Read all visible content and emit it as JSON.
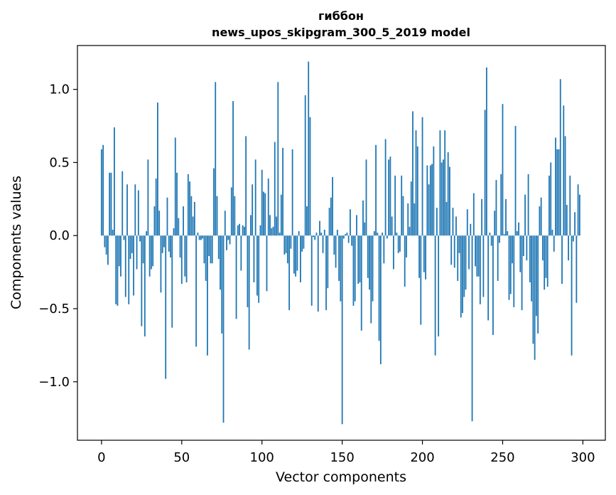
{
  "chart_data": {
    "type": "bar",
    "title_lines": [
      "гиббон",
      "news_upos_skipgram_300_5_2019 model"
    ],
    "xlabel": "Vector components",
    "ylabel": "Components values",
    "xlim": [
      -15,
      314
    ],
    "ylim": [
      -1.4,
      1.3
    ],
    "x_ticks": [
      0,
      50,
      100,
      150,
      200,
      250,
      300
    ],
    "x_tick_labels": [
      "0",
      "50",
      "100",
      "150",
      "200",
      "250",
      "300"
    ],
    "y_ticks": [
      -1.0,
      -0.5,
      0.0,
      0.5,
      1.0
    ],
    "y_tick_labels": [
      "−1.0",
      "−0.5",
      "0.0",
      "0.5",
      "1.0"
    ],
    "grid": false,
    "bar_color": "#1f77b4",
    "values": [
      0.59,
      0.62,
      -0.08,
      -0.13,
      -0.2,
      0.43,
      0.43,
      0.04,
      0.74,
      -0.47,
      -0.48,
      -0.21,
      -0.28,
      0.44,
      -0.03,
      -0.42,
      0.35,
      -0.47,
      -0.16,
      -0.12,
      -0.41,
      0.35,
      -0.23,
      0.31,
      -0.04,
      -0.62,
      -0.19,
      -0.69,
      0.03,
      0.52,
      -0.28,
      -0.23,
      -0.21,
      0.2,
      0.39,
      0.91,
      0.17,
      -0.39,
      -0.12,
      -0.08,
      -0.98,
      0.26,
      -0.11,
      -0.15,
      -0.63,
      0.05,
      0.67,
      0.43,
      0.12,
      -0.15,
      -0.33,
      0.2,
      -0.28,
      -0.32,
      0.42,
      0.37,
      0.27,
      0.13,
      0.23,
      -0.76,
      0.02,
      -0.03,
      -0.03,
      -0.02,
      -0.19,
      -0.31,
      -0.82,
      -0.14,
      -0.19,
      -0.19,
      0.46,
      1.05,
      0.27,
      -0.16,
      -0.37,
      -0.67,
      -1.28,
      0.17,
      -0.1,
      -0.03,
      -0.06,
      0.33,
      0.92,
      0.27,
      -0.57,
      0.07,
      0.08,
      -0.24,
      0.07,
      0.06,
      0.68,
      -0.49,
      -0.78,
      0.14,
      0.35,
      -0.32,
      0.52,
      -0.41,
      -0.46,
      0.07,
      0.45,
      0.3,
      0.29,
      -0.38,
      0.39,
      0.14,
      0.05,
      0.06,
      0.64,
      0.13,
      1.05,
      0.02,
      0.28,
      0.6,
      -0.13,
      -0.12,
      -0.19,
      -0.51,
      -0.09,
      0.59,
      -0.26,
      -0.28,
      -0.24,
      0.03,
      -0.32,
      -0.11,
      -0.09,
      0.96,
      0.2,
      1.19,
      0.81,
      -0.48,
      -0.01,
      -0.03,
      0.02,
      -0.52,
      0.1,
      0.02,
      -0.12,
      0.04,
      -0.51,
      -0.36,
      0.19,
      0.26,
      0.4,
      -0.13,
      -0.22,
      0.04,
      -0.31,
      -0.45,
      -1.29,
      -0.02,
      0.01,
      0.02,
      -0.05,
      0.18,
      -0.07,
      -0.48,
      -0.45,
      0.14,
      -0.33,
      -0.32,
      -0.65,
      0.24,
      0.09,
      0.52,
      -0.29,
      -0.37,
      -0.6,
      -0.45,
      0.03,
      0.62,
      0.02,
      -0.72,
      -0.88,
      0.02,
      -0.19,
      0.66,
      -0.02,
      0.52,
      0.54,
      0.13,
      -0.23,
      0.41,
      0.02,
      -0.12,
      -0.11,
      0.41,
      0.27,
      -0.35,
      -0.15,
      0.22,
      0.06,
      0.37,
      0.85,
      0.22,
      0.72,
      0.61,
      -0.29,
      -0.61,
      0.81,
      -0.25,
      -0.3,
      0.48,
      0.35,
      0.48,
      0.49,
      0.61,
      -0.82,
      0.19,
      -0.69,
      0.72,
      0.5,
      0.52,
      0.72,
      0.23,
      0.57,
      0.47,
      -0.2,
      0.19,
      -0.22,
      0.13,
      -0.31,
      -0.12,
      -0.56,
      -0.53,
      -0.42,
      -0.37,
      0.18,
      -0.23,
      0.08,
      -1.27,
      0.29,
      -0.21,
      -0.28,
      -0.28,
      -0.47,
      0.25,
      -0.42,
      0.86,
      1.15,
      -0.58,
      0.02,
      -0.07,
      -0.68,
      0.17,
      0.38,
      -0.31,
      -0.05,
      0.42,
      0.9,
      0.01,
      0.25,
      0.03,
      -0.44,
      -0.4,
      -0.19,
      -0.49,
      0.75,
      0.03,
      0.09,
      -0.25,
      -0.51,
      -0.14,
      0.28,
      -0.17,
      0.42,
      -0.32,
      -0.45,
      -0.74,
      -0.85,
      -0.55,
      -0.67,
      0.2,
      0.26,
      -0.17,
      -0.37,
      -0.29,
      -0.35,
      0.41,
      0.5,
      0.04,
      -0.11,
      0.67,
      0.59,
      0.59,
      1.07,
      -0.33,
      0.89,
      0.68,
      0.21,
      -0.17,
      0.41,
      -0.82,
      -0.04,
      0.16,
      -0.46,
      0.35,
      0.28
    ]
  }
}
